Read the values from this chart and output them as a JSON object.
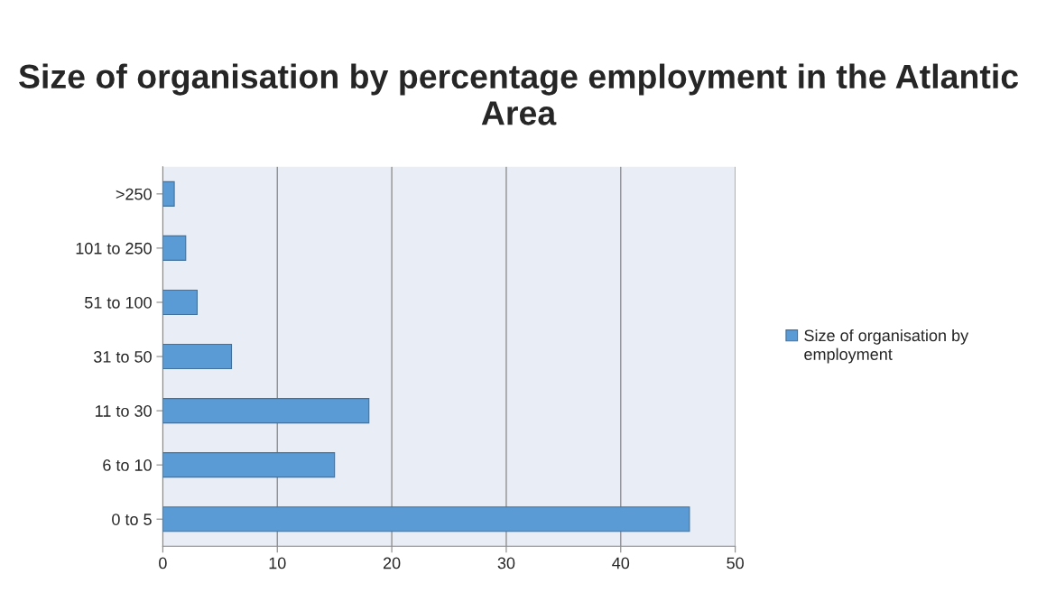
{
  "chart_data": {
    "type": "bar",
    "orientation": "horizontal",
    "title": "Size of organisation by percentage employment in the Atlantic Area",
    "categories": [
      ">250",
      "101 to 250",
      "51 to 100",
      "31 to 50",
      "11 to 30",
      "6 to 10",
      "0 to 5"
    ],
    "series": [
      {
        "name": "Size of organisation by employment",
        "color": "#5b9bd5",
        "values": [
          1,
          2,
          3,
          6,
          18,
          15,
          46
        ]
      }
    ],
    "xlim": [
      0,
      50
    ],
    "xticks": [
      0,
      10,
      20,
      30,
      40,
      50
    ],
    "grid": "x",
    "legend": "right"
  }
}
